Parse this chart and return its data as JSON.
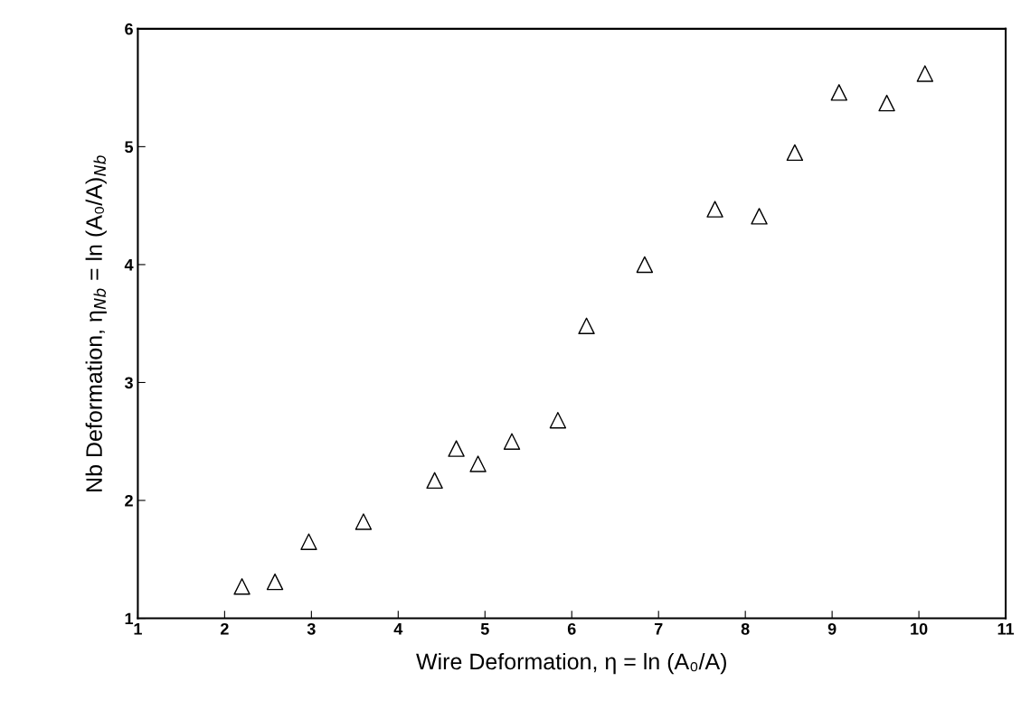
{
  "chart_data": {
    "type": "scatter",
    "xlabel": "Wire Deformation, η = ln (A₀/A)",
    "ylabel": "Nb Deformation, η$_{Nb}$ = ln (A₀/A)$_{Nb}$",
    "x": [
      2.2,
      2.58,
      2.97,
      3.6,
      4.42,
      4.67,
      4.92,
      5.31,
      5.84,
      6.17,
      6.84,
      7.65,
      8.16,
      8.57,
      9.08,
      9.63,
      10.07
    ],
    "series": [
      {
        "color": "#000000",
        "values": [
          1.27,
          1.31,
          1.65,
          1.82,
          2.17,
          2.44,
          2.31,
          2.5,
          2.68,
          3.48,
          4.0,
          4.47,
          4.41,
          4.95,
          5.46,
          5.37,
          5.62
        ]
      }
    ],
    "xlim": [
      1,
      11
    ],
    "xticks": [
      1,
      2,
      3,
      4,
      5,
      6,
      7,
      8,
      9,
      10,
      11
    ],
    "ylim": [
      1,
      6
    ],
    "yticks": [
      1,
      2,
      3,
      4,
      5,
      6
    ],
    "marker": "triangle",
    "grid": false,
    "legend": false
  }
}
